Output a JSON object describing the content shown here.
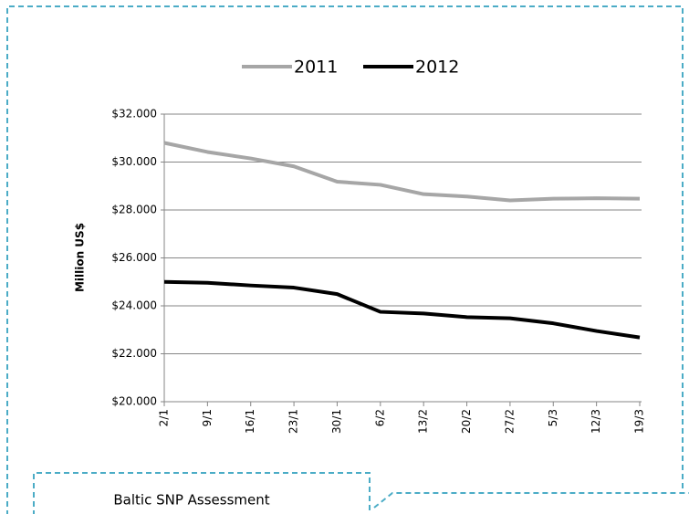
{
  "chart_data": {
    "type": "line",
    "y_label": "Million US$",
    "categories": [
      "2/1",
      "9/1",
      "16/1",
      "23/1",
      "30/1",
      "6/2",
      "13/2",
      "20/2",
      "27/2",
      "5/3",
      "12/3",
      "19/3"
    ],
    "series": [
      {
        "name": "2011",
        "color": "#a6a6a6",
        "values": [
          30800,
          30420,
          30150,
          29820,
          29180,
          29050,
          28660,
          28560,
          28400,
          28470,
          28490,
          28470
        ]
      },
      {
        "name": "2012",
        "color": "#000000",
        "values": [
          25000,
          24960,
          24850,
          24760,
          24490,
          23750,
          23680,
          23530,
          23480,
          23270,
          22950,
          22680
        ]
      }
    ],
    "ylim": [
      20000,
      32000
    ],
    "yticks": [
      {
        "value": 20000,
        "label": "$20.000"
      },
      {
        "value": 22000,
        "label": "$22.000"
      },
      {
        "value": 24000,
        "label": "$24.000"
      },
      {
        "value": 26000,
        "label": "$26.000"
      },
      {
        "value": 28000,
        "label": "$28.000"
      },
      {
        "value": 30000,
        "label": "$30.000"
      },
      {
        "value": 32000,
        "label": "$32.000"
      }
    ],
    "grid": true,
    "legend": "top"
  },
  "footer": {
    "label": "Baltic SNP Assessment"
  }
}
